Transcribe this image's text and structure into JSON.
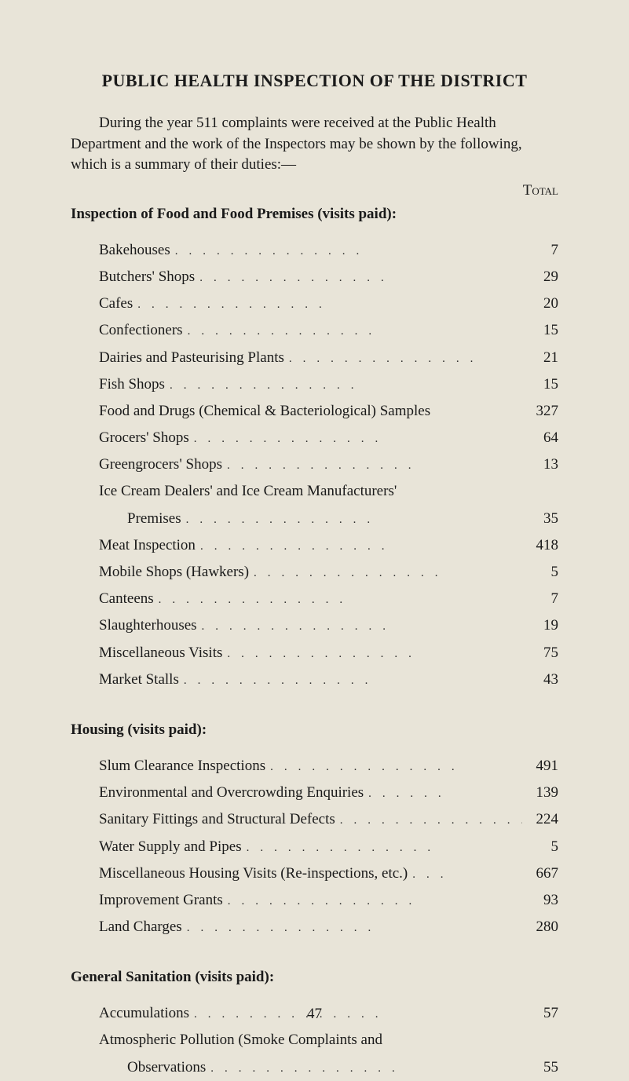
{
  "title": "PUBLIC HEALTH INSPECTION OF THE DISTRICT",
  "intro": "During the year 511 complaints were received at the Public Health Department and the work of the Inspectors may be shown by the following, which is a summary of their duties:—",
  "total_label": "Total",
  "sections": {
    "inspection": {
      "heading": "Inspection of Food and Food Premises (visits paid):",
      "items": [
        {
          "label": "Bakehouses",
          "value": "7"
        },
        {
          "label": "Butchers' Shops",
          "value": "29"
        },
        {
          "label": "Cafes",
          "value": "20"
        },
        {
          "label": "Confectioners",
          "value": "15"
        },
        {
          "label": "Dairies and Pasteurising Plants",
          "value": "21"
        },
        {
          "label": "Fish Shops",
          "value": "15"
        },
        {
          "label": "Food and Drugs (Chemical & Bacteriological) Samples",
          "value": "327"
        },
        {
          "label": "Grocers' Shops",
          "value": "64"
        },
        {
          "label": "Greengrocers' Shops",
          "value": "13"
        },
        {
          "label_line1": "Ice Cream Dealers' and Ice Cream Manufacturers'",
          "label_line2": "Premises",
          "value": "35",
          "multiline": true
        },
        {
          "label": "Meat Inspection",
          "value": "418"
        },
        {
          "label": "Mobile Shops (Hawkers)",
          "value": "5"
        },
        {
          "label": "Canteens",
          "value": "7"
        },
        {
          "label": "Slaughterhouses",
          "value": "19"
        },
        {
          "label": "Miscellaneous Visits",
          "value": "75"
        },
        {
          "label": "Market Stalls",
          "value": "43"
        }
      ]
    },
    "housing": {
      "heading": "Housing (visits paid):",
      "items": [
        {
          "label": "Slum Clearance Inspections",
          "value": "491"
        },
        {
          "label": "Environmental and Overcrowding Enquiries",
          "value": "139"
        },
        {
          "label": "Sanitary Fittings and Structural Defects",
          "value": "224"
        },
        {
          "label": "Water Supply and Pipes",
          "value": "5"
        },
        {
          "label": "Miscellaneous Housing Visits (Re-inspections, etc.)",
          "value": "667"
        },
        {
          "label": "Improvement Grants",
          "value": "93"
        },
        {
          "label": "Land Charges",
          "value": "280"
        }
      ]
    },
    "sanitation": {
      "heading": "General Sanitation (visits paid):",
      "items": [
        {
          "label": "Accumulations",
          "value": "57"
        },
        {
          "label_line1": "Atmospheric Pollution (Smoke Complaints and",
          "label_line2": "Observations",
          "value": "55",
          "multiline": true
        }
      ]
    }
  },
  "page_number": "47",
  "dot_leader": "..."
}
